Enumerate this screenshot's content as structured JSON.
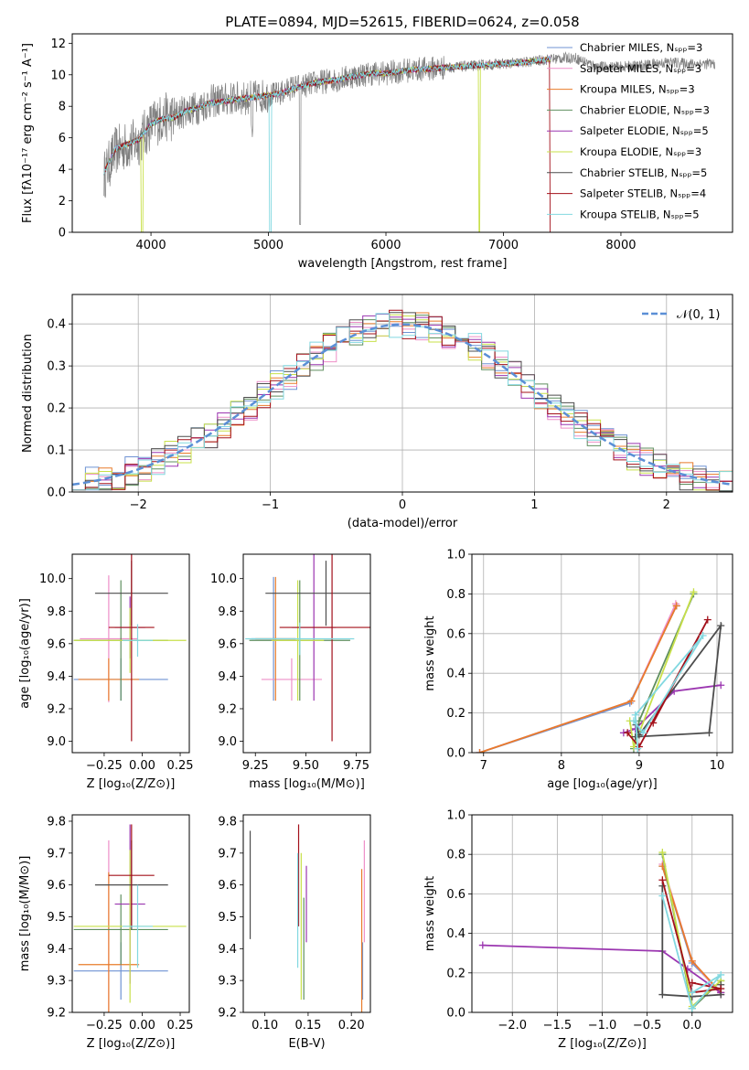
{
  "figure_title": "PLATE=0894, MJD=52615, FIBERID=0624, z=0.058",
  "model_colors": [
    "#6f93d3",
    "#ee8fc8",
    "#e87b2a",
    "#5f8f5f",
    "#9b36b0",
    "#c8e04a",
    "#4d4d4d",
    "#a3101a",
    "#82d8e0"
  ],
  "chart_data": [
    {
      "id": "spectrum",
      "type": "line",
      "title": "PLATE=0894, MJD=52615, FIBERID=0624, z=0.058",
      "xlabel": "wavelength [Angstrom, rest frame]",
      "ylabel": "Flux [fλ10⁻¹⁷ erg cm⁻² s⁻¹ A⁻¹]",
      "xlim": [
        3330,
        8950
      ],
      "ylim": [
        0,
        12.6
      ],
      "xticks": [
        4000,
        5000,
        6000,
        7000,
        8000
      ],
      "yticks": [
        0,
        2,
        4,
        6,
        8,
        10,
        12
      ],
      "grid": false,
      "legend_position": "right",
      "data_color": "#7f7f7f",
      "data_x": [
        3600,
        3700,
        3800,
        3900,
        4000,
        4100,
        4200,
        4300,
        4400,
        4500,
        4600,
        4700,
        4800,
        4900,
        5000,
        5100,
        5200,
        5300,
        5400,
        5500,
        5600,
        5700,
        5800,
        5900,
        6000,
        6200,
        6400,
        6600,
        6800,
        7000,
        7200,
        7400,
        7600,
        7800,
        8000,
        8200,
        8400,
        8600,
        8800
      ],
      "data_y": [
        3.6,
        5.2,
        5.5,
        5.8,
        6.8,
        7.3,
        7.3,
        7.8,
        7.9,
        8.3,
        8.4,
        8.5,
        8.5,
        8.6,
        8.7,
        8.8,
        9.2,
        9.3,
        9.5,
        9.6,
        9.7,
        9.9,
        10.0,
        10.1,
        10.1,
        10.3,
        10.4,
        10.5,
        10.6,
        10.7,
        10.8,
        11.0,
        11.1,
        10.5,
        10.5,
        10.6,
        10.8,
        10.7,
        10.7
      ],
      "model_x": [
        3600,
        3700,
        3800,
        3900,
        4000,
        4100,
        4200,
        4300,
        4400,
        4500,
        4600,
        4700,
        4800,
        4900,
        5000,
        5100,
        5200,
        5300,
        5400,
        5500,
        5600,
        5700,
        5800,
        5900,
        6000,
        6200,
        6400,
        6600,
        6800,
        7000,
        7200,
        7400
      ],
      "model_y": [
        3.8,
        5.3,
        5.6,
        5.9,
        6.9,
        7.2,
        7.3,
        7.7,
        7.9,
        8.2,
        8.3,
        8.4,
        8.5,
        8.6,
        8.7,
        8.8,
        9.1,
        9.3,
        9.5,
        9.6,
        9.7,
        9.9,
        10.0,
        10.1,
        10.1,
        10.3,
        10.4,
        10.5,
        10.6,
        10.7,
        10.8,
        11.0
      ],
      "legend": [
        {
          "label": "Chabrier MILES, Nₛₚₚ=3"
        },
        {
          "label": "Salpeter MILES, Nₛₚₚ=3"
        },
        {
          "label": "Kroupa MILES, Nₛₚₚ=3"
        },
        {
          "label": "Chabrier ELODIE, Nₛₚₚ=3"
        },
        {
          "label": "Salpeter ELODIE, Nₛₚₚ=5"
        },
        {
          "label": "Kroupa ELODIE, Nₛₚₚ=3"
        },
        {
          "label": "Chabrier STELIB, Nₛₚₚ=5"
        },
        {
          "label": "Salpeter STELIB, Nₛₚₚ=4"
        },
        {
          "label": "Kroupa STELIB, Nₛₚₚ=5"
        }
      ]
    },
    {
      "id": "residuals",
      "type": "histogram",
      "xlabel": "(data-model)/error",
      "ylabel": "Normed distribution",
      "xlim": [
        -2.5,
        2.5
      ],
      "ylim": [
        0,
        0.47
      ],
      "xticks": [
        -2,
        -1,
        0,
        1,
        2
      ],
      "xticklabels": [
        "−2",
        "−1",
        "0",
        "1",
        "2"
      ],
      "yticks": [
        0.0,
        0.1,
        0.2,
        0.3,
        0.4
      ],
      "yticklabels": [
        "0.0",
        "0.1",
        "0.2",
        "0.3",
        "0.4"
      ],
      "grid": true,
      "legend_position": "top-right",
      "legend_label": "𝒩(0, 1)",
      "reference_curve_color": "#5b8fd6",
      "bin_start": -2.5,
      "bin_width": 0.1
    },
    {
      "id": "age_vs_z",
      "type": "errorbar",
      "xlabel": "Z [log₁₀(Z/Z⊙)]",
      "ylabel": "age  [log₁₀(age/yr)]",
      "xlim": [
        -0.46,
        0.31
      ],
      "ylim": [
        8.93,
        10.15
      ],
      "xticks": [
        -0.25,
        0.0,
        0.25
      ],
      "xticklabels": [
        "−0.25",
        "0.00",
        "0.25"
      ],
      "yticks": [
        9.0,
        9.2,
        9.4,
        9.6,
        9.8,
        10.0
      ],
      "yticklabels": [
        "9.0",
        "9.2",
        "9.4",
        "9.6",
        "9.8",
        "10.0"
      ],
      "points": [
        {
          "x": -0.14,
          "xerr": 0.31,
          "y": 9.38,
          "yerr": 0.13
        },
        {
          "x": -0.22,
          "xerr": 0.19,
          "y": 9.63,
          "yerr": 0.39
        },
        {
          "x": -0.22,
          "xerr": 0.2,
          "y": 9.38,
          "yerr": 0.13
        },
        {
          "x": -0.14,
          "xerr": 0.31,
          "y": 9.62,
          "yerr": 0.37
        },
        {
          "x": -0.08,
          "xerr": 0.1,
          "y": 9.7,
          "yerr": 0.19
        },
        {
          "x": -0.08,
          "xerr": 0.37,
          "y": 9.62,
          "yerr": 0.2
        },
        {
          "x": -0.07,
          "xerr": 0.24,
          "y": 9.91,
          "yerr": 0.2
        },
        {
          "x": -0.07,
          "xerr": 0.15,
          "y": 9.7,
          "yerr": 0.7
        },
        {
          "x": -0.03,
          "xerr": 0.1,
          "y": 9.62,
          "yerr": 0.1
        }
      ]
    },
    {
      "id": "age_vs_mass",
      "type": "errorbar",
      "xlabel": "mass [log₁₀(M/M⊙)]",
      "ylabel": "",
      "xlim": [
        9.19,
        9.82
      ],
      "ylim": [
        8.93,
        10.15
      ],
      "xticks": [
        9.25,
        9.5,
        9.75
      ],
      "xticklabels": [
        "9.25",
        "9.50",
        "9.75"
      ],
      "yticks": [
        9.0,
        9.2,
        9.4,
        9.6,
        9.8,
        10.0
      ],
      "yticklabels": [
        "9.0",
        "9.2",
        "9.4",
        "9.6",
        "9.8",
        "10.0"
      ],
      "points": [
        {
          "x": 9.34,
          "xerr": 0.11,
          "y": 9.63,
          "yerr": 0.38
        },
        {
          "x": 9.43,
          "xerr": 0.15,
          "y": 9.38,
          "yerr": 0.13
        },
        {
          "x": 9.35,
          "xerr": 0.1,
          "y": 9.63,
          "yerr": 0.38
        },
        {
          "x": 9.47,
          "xerr": 0.25,
          "y": 9.62,
          "yerr": 0.37
        },
        {
          "x": 9.54,
          "xerr": 0.11,
          "y": 9.7,
          "yerr": 0.45
        },
        {
          "x": 9.46,
          "xerr": 0.13,
          "y": 9.62,
          "yerr": 0.37
        },
        {
          "x": 9.6,
          "xerr": 0.3,
          "y": 9.91,
          "yerr": 0.2
        },
        {
          "x": 9.63,
          "xerr": 0.26,
          "y": 9.7,
          "yerr": 0.7
        },
        {
          "x": 9.47,
          "xerr": 0.27,
          "y": 9.63,
          "yerr": 0.1
        }
      ]
    },
    {
      "id": "weight_vs_age",
      "type": "line",
      "xlabel": "age  [log₁₀(age/yr)]",
      "ylabel": "mass weight",
      "xlim": [
        6.85,
        10.2
      ],
      "ylim": [
        0,
        1.0
      ],
      "xticks": [
        7,
        8,
        9,
        10
      ],
      "xticklabels": [
        "7",
        "8",
        "9",
        "10"
      ],
      "yticks": [
        0.0,
        0.2,
        0.4,
        0.6,
        0.8,
        1.0
      ],
      "yticklabels": [
        "0.0",
        "0.2",
        "0.4",
        "0.6",
        "0.8",
        "1.0"
      ],
      "grid": true,
      "series": [
        {
          "x": [
            6.95,
            8.88,
            9.48
          ],
          "y": [
            0.0,
            0.25,
            0.74
          ]
        },
        {
          "x": [
            6.95,
            8.9,
            9.47
          ],
          "y": [
            0.0,
            0.26,
            0.75
          ]
        },
        {
          "x": [
            6.95,
            8.9,
            9.48
          ],
          "y": [
            0.0,
            0.26,
            0.74
          ]
        },
        {
          "x": [
            8.93,
            9.0,
            9.7
          ],
          "y": [
            0.02,
            0.16,
            0.8
          ]
        },
        {
          "x": [
            8.8,
            8.95,
            9.45,
            10.05
          ],
          "y": [
            0.1,
            0.12,
            0.31,
            0.34
          ]
        },
        {
          "x": [
            8.88,
            8.93,
            9.7
          ],
          "y": [
            0.16,
            0.03,
            0.81
          ]
        },
        {
          "x": [
            8.95,
            9.9,
            10.05,
            9.0,
            8.96
          ],
          "y": [
            0.08,
            0.1,
            0.64,
            0.09,
            0.14
          ]
        },
        {
          "x": [
            8.85,
            9.0,
            9.88,
            9.18
          ],
          "y": [
            0.1,
            0.03,
            0.67,
            0.15
          ]
        },
        {
          "x": [
            8.98,
            8.95,
            9.82,
            9.05,
            8.93
          ],
          "y": [
            0.02,
            0.19,
            0.59,
            0.1,
            0.16
          ]
        }
      ]
    },
    {
      "id": "mass_vs_z",
      "type": "errorbar",
      "xlabel": "Z [log₁₀(Z/Z⊙)]",
      "ylabel": "mass [log₁₀(M/M⊙)]",
      "xlim": [
        -0.46,
        0.31
      ],
      "ylim": [
        9.2,
        9.82
      ],
      "xticks": [
        -0.25,
        0.0,
        0.25
      ],
      "xticklabels": [
        "−0.25",
        "0.00",
        "0.25"
      ],
      "yticks": [
        9.2,
        9.3,
        9.4,
        9.5,
        9.6,
        9.7,
        9.8
      ],
      "yticklabels": [
        "9.2",
        "9.3",
        "9.4",
        "9.5",
        "9.6",
        "9.7",
        "9.8"
      ],
      "points": [
        {
          "x": -0.14,
          "xerr": 0.31,
          "y": 9.33,
          "yerr": 0.09
        },
        {
          "x": -0.22,
          "xerr": 0.19,
          "y": 9.46,
          "yerr": 0.28
        },
        {
          "x": -0.22,
          "xerr": 0.2,
          "y": 9.35,
          "yerr": 0.29
        },
        {
          "x": -0.14,
          "xerr": 0.31,
          "y": 9.46,
          "yerr": 0.11
        },
        {
          "x": -0.08,
          "xerr": 0.1,
          "y": 9.54,
          "yerr": 0.25
        },
        {
          "x": -0.08,
          "xerr": 0.37,
          "y": 9.47,
          "yerr": 0.24
        },
        {
          "x": -0.07,
          "xerr": 0.24,
          "y": 9.6,
          "yerr": 0.14
        },
        {
          "x": -0.07,
          "xerr": 0.15,
          "y": 9.63,
          "yerr": 0.16
        },
        {
          "x": -0.03,
          "xerr": 0.1,
          "y": 9.47,
          "yerr": 0.13
        }
      ]
    },
    {
      "id": "mass_vs_ebv",
      "type": "errorbar",
      "xlabel": "E(B-V)",
      "ylabel": "",
      "xlim": [
        0.075,
        0.222
      ],
      "ylim": [
        9.2,
        9.82
      ],
      "xticks": [
        0.1,
        0.15,
        0.2
      ],
      "xticklabels": [
        "0.10",
        "0.15",
        "0.20"
      ],
      "yticks": [
        9.2,
        9.3,
        9.4,
        9.5,
        9.6,
        9.7,
        9.8
      ],
      "yticklabels": [
        "9.2",
        "9.3",
        "9.4",
        "9.5",
        "9.6",
        "9.7",
        "9.8"
      ],
      "points": [
        {
          "x": 0.213,
          "xerr": 0,
          "y": 9.33,
          "yerr": 0.09
        },
        {
          "x": 0.215,
          "xerr": 0,
          "y": 9.58,
          "yerr": 0.16
        },
        {
          "x": 0.212,
          "xerr": 0,
          "y": 9.42,
          "yerr": 0.23
        },
        {
          "x": 0.145,
          "xerr": 0,
          "y": 9.4,
          "yerr": 0.16
        },
        {
          "x": 0.148,
          "xerr": 0,
          "y": 9.54,
          "yerr": 0.12
        },
        {
          "x": 0.142,
          "xerr": 0,
          "y": 9.47,
          "yerr": 0.23
        },
        {
          "x": 0.083,
          "xerr": 0,
          "y": 9.6,
          "yerr": 0.17
        },
        {
          "x": 0.139,
          "xerr": 0,
          "y": 9.63,
          "yerr": 0.16
        },
        {
          "x": 0.138,
          "xerr": 0,
          "y": 9.52,
          "yerr": 0.18
        }
      ]
    },
    {
      "id": "weight_vs_z",
      "type": "line",
      "xlabel": "Z [log₁₀(Z/Z⊙)]",
      "ylabel": "mass weight",
      "xlim": [
        -2.45,
        0.45
      ],
      "ylim": [
        0,
        1.0
      ],
      "xticks": [
        -2.0,
        -1.5,
        -1.0,
        -0.5,
        0.0
      ],
      "xticklabels": [
        "−2.0",
        "−1.5",
        "−1.0",
        "−0.5",
        "0.0"
      ],
      "yticks": [
        0.0,
        0.2,
        0.4,
        0.6,
        0.8,
        1.0
      ],
      "yticklabels": [
        "0.0",
        "0.2",
        "0.4",
        "0.6",
        "0.8",
        "1.0"
      ],
      "grid": true,
      "series": [
        {
          "x": [
            -0.33,
            0.0,
            0.32
          ],
          "y": [
            0.74,
            0.25,
            0.1
          ]
        },
        {
          "x": [
            -0.33,
            0.0,
            0.32
          ],
          "y": [
            0.75,
            0.26,
            0.09
          ]
        },
        {
          "x": [
            -0.33,
            0.0,
            0.32
          ],
          "y": [
            0.74,
            0.26,
            0.1
          ]
        },
        {
          "x": [
            -0.33,
            0.0,
            0.32
          ],
          "y": [
            0.8,
            0.02,
            0.16
          ]
        },
        {
          "x": [
            -2.33,
            -0.33,
            -0.05,
            0.32
          ],
          "y": [
            0.34,
            0.31,
            0.22,
            0.1
          ]
        },
        {
          "x": [
            -0.33,
            0.0,
            0.32
          ],
          "y": [
            0.81,
            0.03,
            0.16
          ]
        },
        {
          "x": [
            -0.33,
            -0.33,
            0.0,
            0.32,
            0.32
          ],
          "y": [
            0.64,
            0.09,
            0.08,
            0.09,
            0.14
          ]
        },
        {
          "x": [
            -0.33,
            0.0,
            0.32,
            0.0
          ],
          "y": [
            0.67,
            0.1,
            0.12,
            0.15
          ]
        },
        {
          "x": [
            -0.33,
            0.0,
            0.32,
            0.0
          ],
          "y": [
            0.59,
            0.02,
            0.19,
            0.1
          ]
        }
      ]
    }
  ]
}
